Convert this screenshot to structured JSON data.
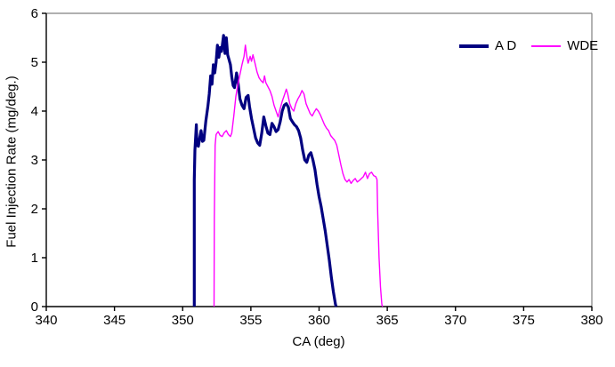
{
  "chart_data": {
    "type": "line",
    "title": "",
    "xlabel": "CA (deg)",
    "ylabel": "Fuel Injection Rate (mg/deg.)",
    "xlim": [
      340,
      380
    ],
    "ylim": [
      0,
      6
    ],
    "x_ticks": [
      340,
      345,
      350,
      355,
      360,
      365,
      370,
      375,
      380
    ],
    "y_ticks": [
      0,
      1,
      2,
      3,
      4,
      5,
      6
    ],
    "grid": false,
    "background": "#ffffff",
    "axis_color": "#000000",
    "plot_border_color": "#808080",
    "legend": {
      "position": "top-right-inside",
      "entries": [
        "A D",
        "WDE"
      ]
    },
    "series": [
      {
        "name": "A D",
        "color": "#000080",
        "stroke_width": 3.2,
        "points": [
          [
            350.85,
            0
          ],
          [
            350.85,
            2.6
          ],
          [
            350.9,
            3.2
          ],
          [
            351.0,
            3.72
          ],
          [
            351.05,
            3.3
          ],
          [
            351.15,
            3.28
          ],
          [
            351.25,
            3.45
          ],
          [
            351.35,
            3.6
          ],
          [
            351.45,
            3.38
          ],
          [
            351.55,
            3.4
          ],
          [
            351.7,
            3.8
          ],
          [
            351.85,
            4.1
          ],
          [
            351.95,
            4.35
          ],
          [
            352.05,
            4.72
          ],
          [
            352.15,
            4.55
          ],
          [
            352.25,
            4.95
          ],
          [
            352.35,
            4.78
          ],
          [
            352.45,
            5.0
          ],
          [
            352.55,
            5.35
          ],
          [
            352.65,
            5.1
          ],
          [
            352.75,
            5.3
          ],
          [
            352.85,
            5.22
          ],
          [
            353.0,
            5.55
          ],
          [
            353.1,
            5.18
          ],
          [
            353.2,
            5.5
          ],
          [
            353.3,
            5.15
          ],
          [
            353.4,
            5.05
          ],
          [
            353.5,
            4.95
          ],
          [
            353.6,
            4.7
          ],
          [
            353.7,
            4.52
          ],
          [
            353.8,
            4.48
          ],
          [
            353.95,
            4.78
          ],
          [
            354.05,
            4.6
          ],
          [
            354.2,
            4.25
          ],
          [
            354.35,
            4.12
          ],
          [
            354.5,
            4.05
          ],
          [
            354.65,
            4.28
          ],
          [
            354.8,
            4.32
          ],
          [
            354.9,
            4.1
          ],
          [
            355.05,
            3.85
          ],
          [
            355.2,
            3.65
          ],
          [
            355.35,
            3.45
          ],
          [
            355.5,
            3.35
          ],
          [
            355.65,
            3.3
          ],
          [
            355.8,
            3.55
          ],
          [
            355.95,
            3.88
          ],
          [
            356.1,
            3.7
          ],
          [
            356.25,
            3.55
          ],
          [
            356.4,
            3.52
          ],
          [
            356.55,
            3.75
          ],
          [
            356.7,
            3.68
          ],
          [
            356.85,
            3.58
          ],
          [
            357.0,
            3.62
          ],
          [
            357.15,
            3.78
          ],
          [
            357.3,
            4.0
          ],
          [
            357.45,
            4.12
          ],
          [
            357.6,
            4.15
          ],
          [
            357.75,
            4.08
          ],
          [
            357.9,
            3.85
          ],
          [
            358.05,
            3.78
          ],
          [
            358.2,
            3.72
          ],
          [
            358.35,
            3.68
          ],
          [
            358.5,
            3.6
          ],
          [
            358.65,
            3.45
          ],
          [
            358.8,
            3.2
          ],
          [
            358.95,
            3.0
          ],
          [
            359.1,
            2.95
          ],
          [
            359.25,
            3.1
          ],
          [
            359.4,
            3.15
          ],
          [
            359.55,
            3.0
          ],
          [
            359.7,
            2.8
          ],
          [
            359.85,
            2.5
          ],
          [
            360.0,
            2.25
          ],
          [
            360.15,
            2.05
          ],
          [
            360.3,
            1.8
          ],
          [
            360.45,
            1.55
          ],
          [
            360.6,
            1.25
          ],
          [
            360.75,
            0.95
          ],
          [
            360.9,
            0.6
          ],
          [
            361.05,
            0.3
          ],
          [
            361.2,
            0.05
          ],
          [
            361.25,
            0
          ]
        ]
      },
      {
        "name": "WDE",
        "color": "#FF00FF",
        "stroke_width": 1.4,
        "points": [
          [
            352.3,
            0
          ],
          [
            352.32,
            1.8
          ],
          [
            352.38,
            3.3
          ],
          [
            352.45,
            3.52
          ],
          [
            352.6,
            3.58
          ],
          [
            352.75,
            3.5
          ],
          [
            352.9,
            3.48
          ],
          [
            353.05,
            3.56
          ],
          [
            353.2,
            3.6
          ],
          [
            353.35,
            3.52
          ],
          [
            353.5,
            3.48
          ],
          [
            353.6,
            3.55
          ],
          [
            353.75,
            3.9
          ],
          [
            353.9,
            4.3
          ],
          [
            354.05,
            4.55
          ],
          [
            354.2,
            4.75
          ],
          [
            354.35,
            4.95
          ],
          [
            354.5,
            5.12
          ],
          [
            354.6,
            5.35
          ],
          [
            354.7,
            5.12
          ],
          [
            354.8,
            4.98
          ],
          [
            354.95,
            5.12
          ],
          [
            355.05,
            5.02
          ],
          [
            355.15,
            5.15
          ],
          [
            355.3,
            4.98
          ],
          [
            355.45,
            4.8
          ],
          [
            355.6,
            4.68
          ],
          [
            355.75,
            4.62
          ],
          [
            355.9,
            4.58
          ],
          [
            356.0,
            4.72
          ],
          [
            356.1,
            4.58
          ],
          [
            356.25,
            4.5
          ],
          [
            356.4,
            4.42
          ],
          [
            356.55,
            4.3
          ],
          [
            356.7,
            4.12
          ],
          [
            356.85,
            4.0
          ],
          [
            357.0,
            3.88
          ],
          [
            357.15,
            4.05
          ],
          [
            357.3,
            4.2
          ],
          [
            357.45,
            4.32
          ],
          [
            357.6,
            4.45
          ],
          [
            357.7,
            4.35
          ],
          [
            357.85,
            4.15
          ],
          [
            358.0,
            4.05
          ],
          [
            358.15,
            4.0
          ],
          [
            358.3,
            4.15
          ],
          [
            358.45,
            4.25
          ],
          [
            358.6,
            4.32
          ],
          [
            358.75,
            4.42
          ],
          [
            358.9,
            4.35
          ],
          [
            359.05,
            4.15
          ],
          [
            359.2,
            4.05
          ],
          [
            359.35,
            3.95
          ],
          [
            359.5,
            3.9
          ],
          [
            359.65,
            3.98
          ],
          [
            359.8,
            4.05
          ],
          [
            359.95,
            4.0
          ],
          [
            360.1,
            3.92
          ],
          [
            360.25,
            3.82
          ],
          [
            360.4,
            3.72
          ],
          [
            360.55,
            3.65
          ],
          [
            360.7,
            3.6
          ],
          [
            360.85,
            3.5
          ],
          [
            361.0,
            3.45
          ],
          [
            361.15,
            3.4
          ],
          [
            361.3,
            3.3
          ],
          [
            361.45,
            3.1
          ],
          [
            361.6,
            2.9
          ],
          [
            361.75,
            2.72
          ],
          [
            361.9,
            2.6
          ],
          [
            362.05,
            2.55
          ],
          [
            362.2,
            2.6
          ],
          [
            362.35,
            2.52
          ],
          [
            362.5,
            2.58
          ],
          [
            362.65,
            2.62
          ],
          [
            362.8,
            2.55
          ],
          [
            362.95,
            2.58
          ],
          [
            363.1,
            2.62
          ],
          [
            363.25,
            2.66
          ],
          [
            363.4,
            2.75
          ],
          [
            363.55,
            2.62
          ],
          [
            363.7,
            2.72
          ],
          [
            363.85,
            2.75
          ],
          [
            364.0,
            2.68
          ],
          [
            364.15,
            2.66
          ],
          [
            364.25,
            2.6
          ],
          [
            364.3,
            1.9
          ],
          [
            364.4,
            1.0
          ],
          [
            364.5,
            0.4
          ],
          [
            364.6,
            0.05
          ],
          [
            364.65,
            0
          ]
        ]
      }
    ]
  }
}
